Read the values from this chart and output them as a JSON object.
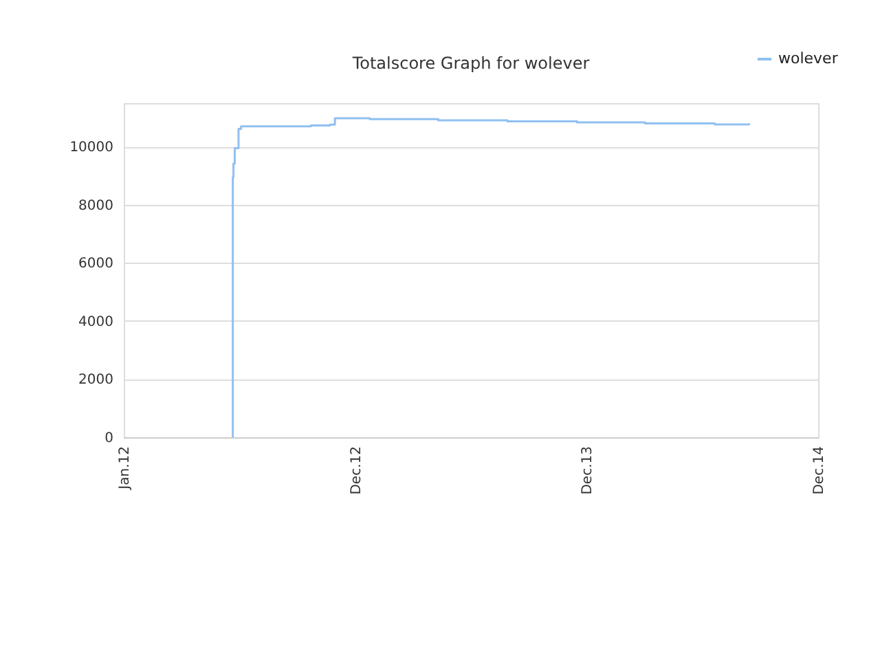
{
  "chart_data": {
    "type": "step",
    "title": "Totalscore Graph for wolever",
    "series": [
      {
        "name": "wolever",
        "color": "#90c0f0",
        "x": [
          "2012-06-20",
          "2012-06-21",
          "2012-06-22",
          "2012-06-24",
          "2012-06-30",
          "2012-07-04",
          "2012-10-22",
          "2012-11-21",
          "2012-11-29",
          "2013-01-23",
          "2013-05-11",
          "2013-08-28",
          "2013-12-16",
          "2014-04-02",
          "2014-07-21",
          "2014-09-13"
        ],
        "values": [
          0,
          8950,
          9420,
          9950,
          10610,
          10700,
          10730,
          10760,
          10980,
          10950,
          10910,
          10875,
          10840,
          10800,
          10765,
          10810
        ]
      }
    ],
    "xlim": [
      "2012-01-01",
      "2014-12-31"
    ],
    "xticks": [
      {
        "value": "2012-01-01",
        "label": "Jan.12"
      },
      {
        "value": "2012-12-31",
        "label": "Dec.12"
      },
      {
        "value": "2013-12-31",
        "label": "Dec.13"
      },
      {
        "value": "2014-12-31",
        "label": "Dec.14"
      }
    ],
    "ylim": [
      0,
      11500
    ],
    "yticks": [
      0,
      2000,
      4000,
      6000,
      8000,
      10000
    ],
    "grid": "y",
    "legend": "top right"
  }
}
